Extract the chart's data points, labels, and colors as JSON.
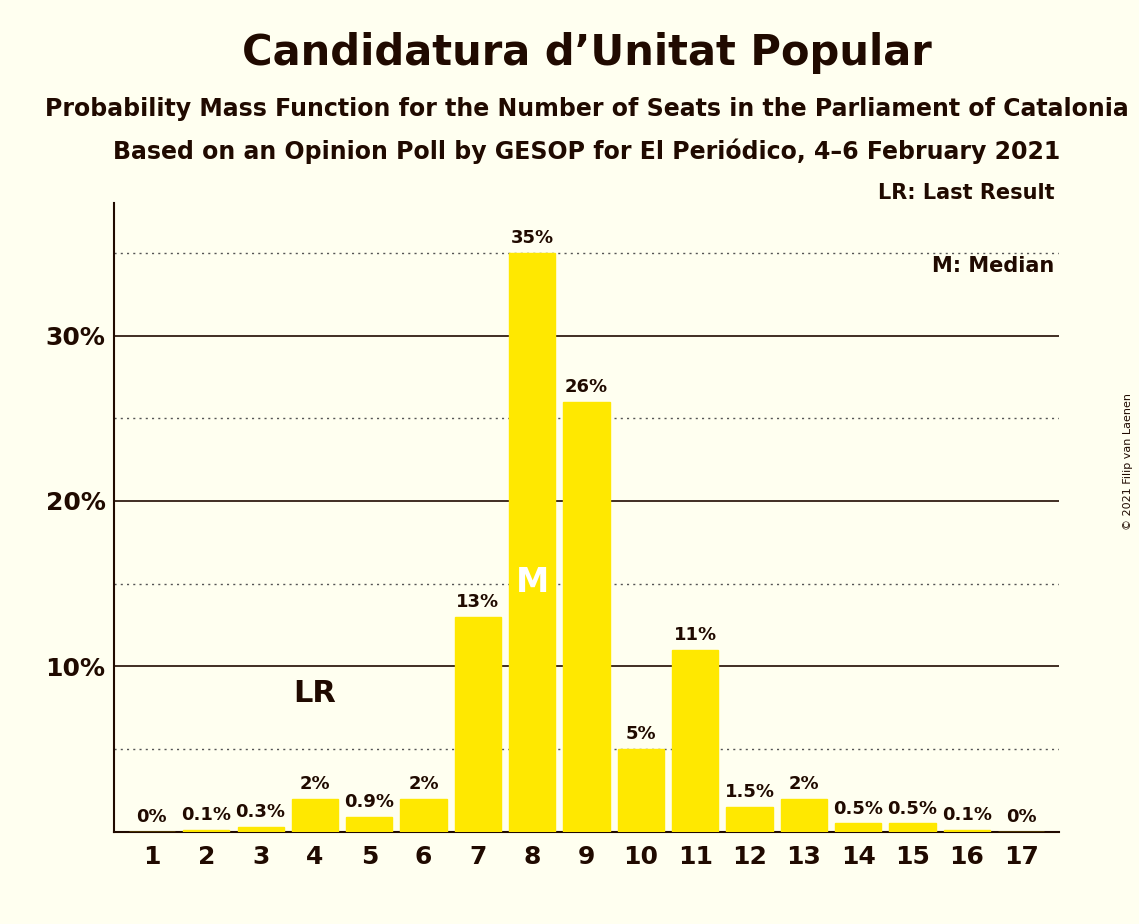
{
  "title": "Candidatura d’Unitat Popular",
  "subtitle1": "Probability Mass Function for the Number of Seats in the Parliament of Catalonia",
  "subtitle2": "Based on an Opinion Poll by GESOP for El Periódico, 4–6 February 2021",
  "copyright": "© 2021 Filip van Laenen",
  "seats": [
    1,
    2,
    3,
    4,
    5,
    6,
    7,
    8,
    9,
    10,
    11,
    12,
    13,
    14,
    15,
    16,
    17
  ],
  "probabilities": [
    0.0,
    0.1,
    0.3,
    2.0,
    0.9,
    2.0,
    13.0,
    35.0,
    26.0,
    5.0,
    11.0,
    1.5,
    2.0,
    0.5,
    0.5,
    0.1,
    0.0
  ],
  "labels": [
    "0%",
    "0.1%",
    "0.3%",
    "2%",
    "0.9%",
    "2%",
    "13%",
    "35%",
    "26%",
    "5%",
    "11%",
    "1.5%",
    "2%",
    "0.5%",
    "0.5%",
    "0.1%",
    "0%"
  ],
  "bar_color": "#FFE800",
  "background_color": "#FFFFF0",
  "text_color": "#200A00",
  "median_seat": 8,
  "last_result_seat": 4,
  "median_label": "M",
  "lr_label": "LR",
  "legend_lr": "LR: Last Result",
  "legend_m": "M: Median",
  "dotted_line_color": "#555555",
  "solid_line_color": "#200A00",
  "solid_yticks": [
    10,
    20,
    30
  ],
  "dotted_yticks": [
    5,
    15,
    25,
    35
  ],
  "ylim": [
    0,
    38
  ],
  "title_fontsize": 30,
  "subtitle_fontsize": 17,
  "label_fontsize": 13,
  "tick_fontsize": 18,
  "legend_fontsize": 15,
  "median_label_fontsize": 24,
  "lr_label_fontsize": 22
}
